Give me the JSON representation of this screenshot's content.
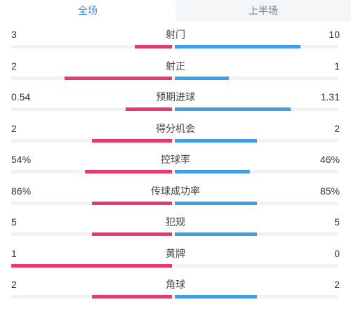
{
  "tabs": [
    {
      "label": "全场",
      "active": true
    },
    {
      "label": "上半场",
      "active": false
    }
  ],
  "colors": {
    "home": "#e8396f",
    "away": "#3f9ee5"
  },
  "stats": [
    {
      "label": "射门",
      "home": "3",
      "away": "10",
      "home_share": 0.23,
      "away_share": 0.77
    },
    {
      "label": "射正",
      "home": "2",
      "away": "1",
      "home_share": 0.67,
      "away_share": 0.33
    },
    {
      "label": "预期进球",
      "home": "0.54",
      "away": "1.31",
      "home_share": 0.29,
      "away_share": 0.71
    },
    {
      "label": "得分机会",
      "home": "2",
      "away": "2",
      "home_share": 0.5,
      "away_share": 0.5
    },
    {
      "label": "控球率",
      "home": "54%",
      "away": "46%",
      "home_share": 0.54,
      "away_share": 0.46
    },
    {
      "label": "传球成功率",
      "home": "86%",
      "away": "85%",
      "home_share": 0.5,
      "away_share": 0.5
    },
    {
      "label": "犯规",
      "home": "5",
      "away": "5",
      "home_share": 0.5,
      "away_share": 0.5
    },
    {
      "label": "黄牌",
      "home": "1",
      "away": "0",
      "home_share": 1.0,
      "away_share": 0.0
    },
    {
      "label": "角球",
      "home": "2",
      "away": "2",
      "home_share": 0.5,
      "away_share": 0.5
    }
  ]
}
